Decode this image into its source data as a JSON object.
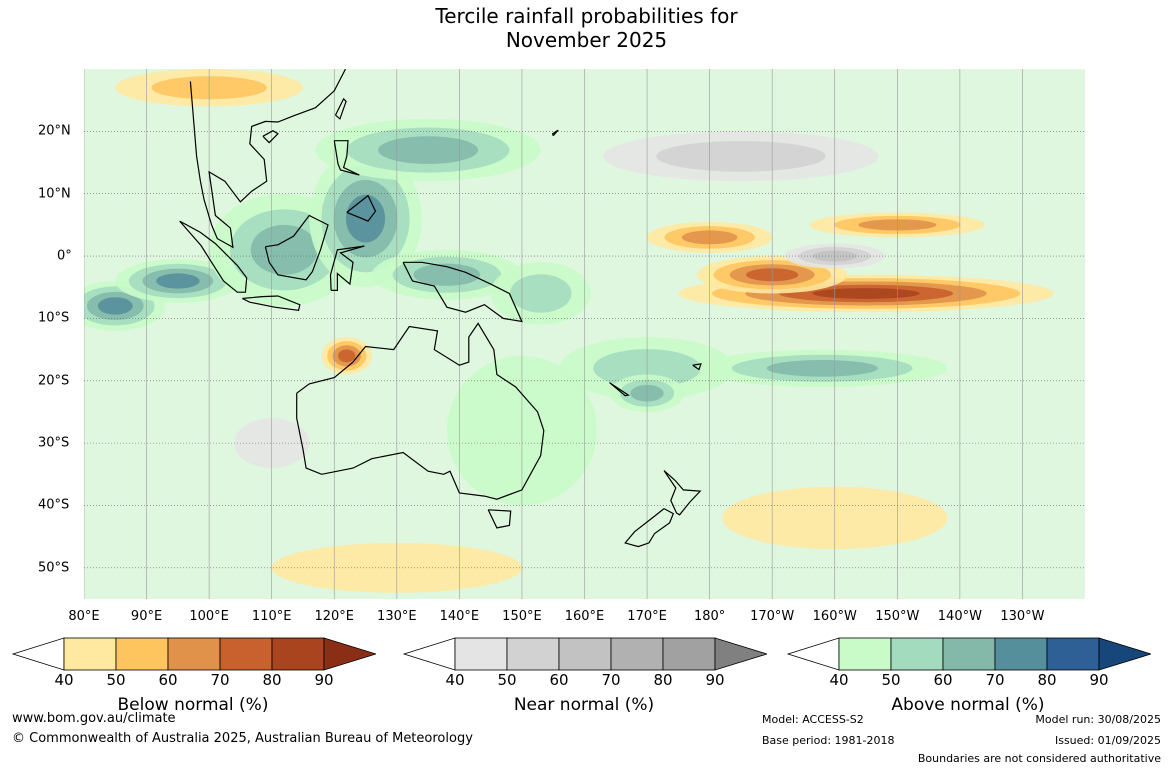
{
  "title_line1": "Tercile rainfall probabilities for",
  "title_line2": "November 2025",
  "lon_labels": [
    "80°E",
    "90°E",
    "100°E",
    "110°E",
    "120°E",
    "130°E",
    "140°E",
    "150°E",
    "160°E",
    "170°E",
    "180°",
    "170°W",
    "160°W",
    "150°W",
    "140°W",
    "130°W"
  ],
  "lat_labels": [
    "20°N",
    "10°N",
    "0°",
    "10°S",
    "20°S",
    "30°S",
    "40°S",
    "50°S"
  ],
  "colorbars": {
    "below": {
      "title": "Below normal (%)",
      "ticks": [
        "40",
        "50",
        "60",
        "70",
        "80",
        "90"
      ],
      "colors": [
        "#ffe8a0",
        "#fec55f",
        "#e0924a",
        "#c8612e",
        "#a9441f",
        "#8a2e16"
      ]
    },
    "near": {
      "title": "Near normal (%)",
      "ticks": [
        "40",
        "50",
        "60",
        "70",
        "80",
        "90"
      ],
      "colors": [
        "#e4e4e4",
        "#d2d2d2",
        "#c2c2c2",
        "#b1b1b1",
        "#a1a1a1",
        "#808080"
      ]
    },
    "above": {
      "title": "Above normal (%)",
      "ticks": [
        "40",
        "50",
        "60",
        "70",
        "80",
        "90"
      ],
      "colors": [
        "#c9fbc9",
        "#a3dbbf",
        "#84b9aa",
        "#568f9c",
        "#2f6095",
        "#16467a"
      ]
    }
  },
  "footer": {
    "url": "www.bom.gov.au/climate",
    "copyright": "© Commonwealth of Australia 2025, Australian Bureau of Meteorology",
    "model": "Model: ACCESS-S2",
    "base_period": "Base period: 1981-2018",
    "model_run": "Model run: 30/08/2025",
    "issued": "Issued: 01/09/2025",
    "boundaries": "Boundaries are not considered authoritative"
  },
  "map_field": {
    "blobs": [
      {
        "lon": 85,
        "lat": -8,
        "rx": 8,
        "ry": 4,
        "c": 3
      },
      {
        "lon": 95,
        "lat": -4,
        "rx": 10,
        "ry": 3.5,
        "c": 3
      },
      {
        "lon": 112,
        "lat": 1,
        "rx": 12,
        "ry": 9,
        "c": 2
      },
      {
        "lon": 125,
        "lat": 6,
        "rx": 9,
        "ry": 11,
        "c": 3
      },
      {
        "lon": 135,
        "lat": 17,
        "rx": 18,
        "ry": 5,
        "c": 2
      },
      {
        "lon": 138,
        "lat": -3,
        "rx": 12,
        "ry": 4,
        "c": 2
      },
      {
        "lon": 153,
        "lat": -6,
        "rx": 8,
        "ry": 5,
        "c": 1
      },
      {
        "lon": 170,
        "lat": -18,
        "rx": 14,
        "ry": 5,
        "c": 1
      },
      {
        "lon": 198,
        "lat": -18,
        "rx": 20,
        "ry": 3,
        "c": 2
      },
      {
        "lon": 170,
        "lat": -22,
        "rx": 6,
        "ry": 3,
        "c": 2
      },
      {
        "lon": 150,
        "lat": -28,
        "rx": 12,
        "ry": 12,
        "c": 0
      }
    ],
    "dry_blobs": [
      {
        "lon": 205,
        "lat": -6,
        "rx": 30,
        "ry": 3,
        "c": 4
      },
      {
        "lon": 190,
        "lat": -3,
        "rx": 12,
        "ry": 3,
        "c": 3
      },
      {
        "lon": 180,
        "lat": 3,
        "rx": 10,
        "ry": 2.5,
        "c": 2
      },
      {
        "lon": 210,
        "lat": 5,
        "rx": 14,
        "ry": 2,
        "c": 2
      },
      {
        "lon": 122,
        "lat": -16,
        "rx": 4,
        "ry": 3,
        "c": 3
      },
      {
        "lon": 100,
        "lat": 27,
        "rx": 15,
        "ry": 3,
        "c": 1
      },
      {
        "lon": 130,
        "lat": -50,
        "rx": 20,
        "ry": 4,
        "c": 0
      },
      {
        "lon": 200,
        "lat": -42,
        "rx": 18,
        "ry": 5,
        "c": 0
      }
    ],
    "near_blobs": [
      {
        "lon": 185,
        "lat": 16,
        "rx": 22,
        "ry": 4,
        "c": 1
      },
      {
        "lon": 200,
        "lat": 0,
        "rx": 8,
        "ry": 2,
        "c": 2
      },
      {
        "lon": 110,
        "lat": -30,
        "rx": 6,
        "ry": 4,
        "c": 0
      }
    ]
  }
}
